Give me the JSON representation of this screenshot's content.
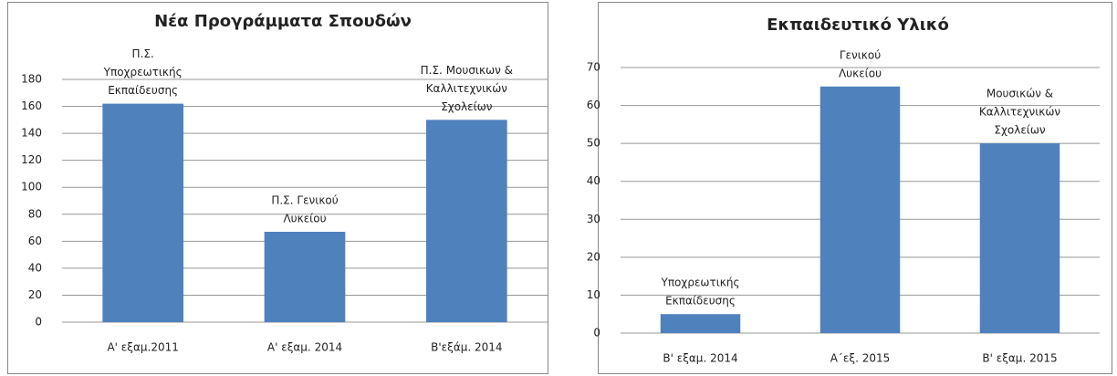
{
  "chart_data": [
    {
      "type": "bar",
      "title": "Νέα Προγράμματα Σπουδών",
      "categories": [
        "Α' εξαμ.2011",
        "Α' εξαμ. 2014",
        "Β'εξάμ. 2014"
      ],
      "values": [
        162,
        67,
        150
      ],
      "color": "#4f81bd",
      "annotations": [
        [
          "Π.Σ.",
          "Υποχρεωτικής",
          "Εκπαίδευσης"
        ],
        [
          "Π.Σ. Γενικού",
          "Λυκείου"
        ],
        [
          "Π.Σ. Μουσικων &",
          "Καλλιτεχνικών",
          "Σχολείων"
        ]
      ],
      "ylim": [
        0,
        180
      ],
      "yticks": [
        0,
        20,
        40,
        60,
        80,
        100,
        120,
        140,
        160,
        180
      ],
      "grid": true
    },
    {
      "type": "bar",
      "title": "Εκπαιδευτικό Υλικό",
      "categories": [
        "Β' εξαμ. 2014",
        "Α΄εξ. 2015",
        "Β' εξαμ. 2015"
      ],
      "values": [
        5,
        65,
        50
      ],
      "color": "#4f81bd",
      "annotations": [
        [
          "Υποχρεωτικής",
          "Εκπαίδευσης"
        ],
        [
          "Γενικού",
          "Λυκείου"
        ],
        [
          "Μουσικών &",
          "Καλλιτεχνικών",
          "Σχολείων"
        ]
      ],
      "ylim": [
        0,
        70
      ],
      "yticks": [
        0,
        10,
        20,
        30,
        40,
        50,
        60,
        70
      ],
      "grid": true
    }
  ]
}
